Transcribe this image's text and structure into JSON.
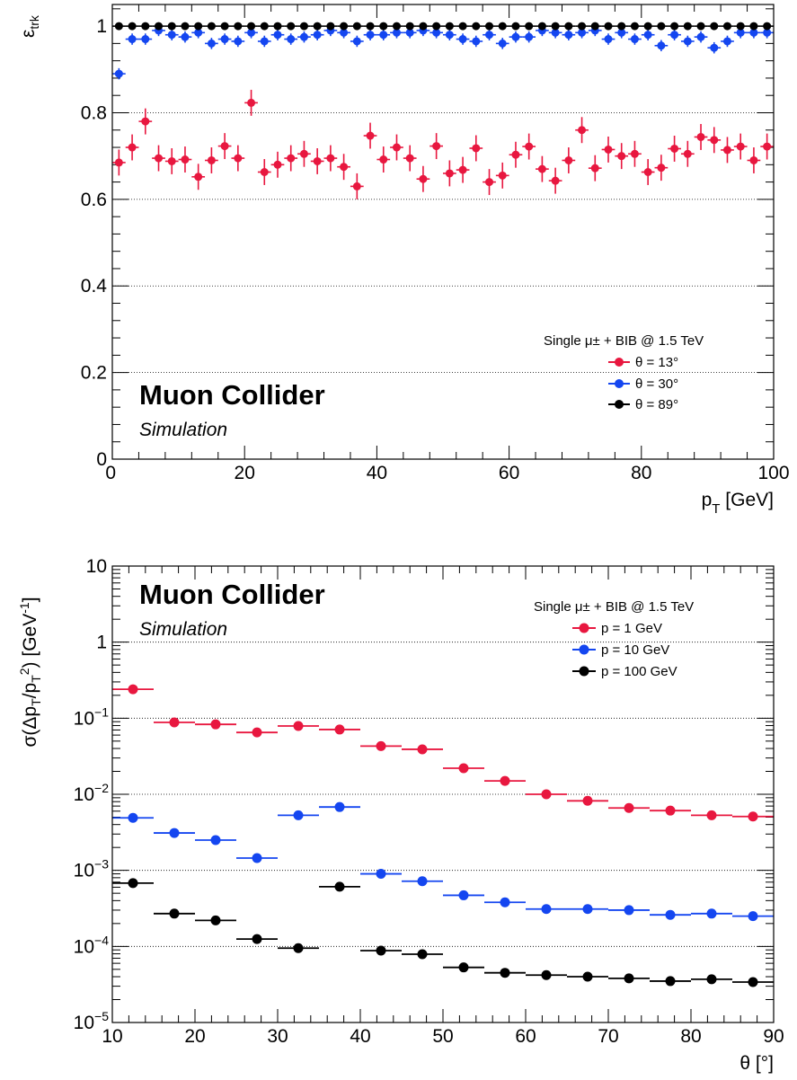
{
  "colors": {
    "red": "#e8173f",
    "blue": "#1446f0",
    "black": "#000000",
    "grid": "#000000"
  },
  "chart_data": [
    {
      "type": "scatter",
      "xlabel_main": "p",
      "xlabel_sub": "T",
      "xlabel_unit": " [GeV]",
      "ylabel_main": "ε",
      "ylabel_sub": "trk",
      "xlim": [
        0,
        100
      ],
      "ylim": [
        0,
        1.05
      ],
      "x_ticks": [
        "0",
        "20",
        "40",
        "60",
        "80",
        "100"
      ],
      "y_ticks": [
        "0",
        "0.2",
        "0.4",
        "0.6",
        "0.8",
        "1"
      ],
      "grid": "horizontal dotted",
      "legend_placement": "lower-right",
      "legend_header": "Single μ± + BIB @ 1.5 TeV",
      "brand": "Muon Collider",
      "brand_sub": "Simulation",
      "series": [
        {
          "name": "θ = 13°",
          "color": "red",
          "x": [
            1,
            3,
            5,
            7,
            9,
            11,
            13,
            15,
            17,
            19,
            21,
            23,
            25,
            27,
            29,
            31,
            33,
            35,
            37,
            39,
            41,
            43,
            45,
            47,
            49,
            51,
            53,
            55,
            57,
            59,
            61,
            63,
            65,
            67,
            69,
            71,
            73,
            75,
            77,
            79,
            81,
            83,
            85,
            87,
            89,
            91,
            93,
            95,
            97,
            99
          ],
          "y": [
            0.685,
            0.72,
            0.78,
            0.695,
            0.688,
            0.692,
            0.652,
            0.69,
            0.723,
            0.695,
            0.823,
            0.663,
            0.68,
            0.695,
            0.705,
            0.688,
            0.695,
            0.675,
            0.63,
            0.747,
            0.692,
            0.72,
            0.695,
            0.647,
            0.723,
            0.66,
            0.668,
            0.718,
            0.64,
            0.655,
            0.703,
            0.722,
            0.67,
            0.643,
            0.69,
            0.76,
            0.672,
            0.715,
            0.7,
            0.705,
            0.663,
            0.673,
            0.717,
            0.705,
            0.744,
            0.737,
            0.714,
            0.722,
            0.69,
            0.722
          ],
          "yerr": 0.03
        },
        {
          "name": "θ = 30°",
          "color": "blue",
          "x": [
            1,
            3,
            5,
            7,
            9,
            11,
            13,
            15,
            17,
            19,
            21,
            23,
            25,
            27,
            29,
            31,
            33,
            35,
            37,
            39,
            41,
            43,
            45,
            47,
            49,
            51,
            53,
            55,
            57,
            59,
            61,
            63,
            65,
            67,
            69,
            71,
            73,
            75,
            77,
            79,
            81,
            83,
            85,
            87,
            89,
            91,
            93,
            95,
            97,
            99
          ],
          "y": [
            0.89,
            0.97,
            0.97,
            0.99,
            0.98,
            0.975,
            0.985,
            0.96,
            0.97,
            0.965,
            0.985,
            0.965,
            0.98,
            0.97,
            0.975,
            0.98,
            0.99,
            0.985,
            0.965,
            0.98,
            0.98,
            0.985,
            0.985,
            0.99,
            0.985,
            0.98,
            0.97,
            0.965,
            0.98,
            0.96,
            0.975,
            0.975,
            0.99,
            0.985,
            0.98,
            0.985,
            0.99,
            0.97,
            0.985,
            0.97,
            0.98,
            0.955,
            0.98,
            0.965,
            0.975,
            0.95,
            0.965,
            0.985,
            0.985,
            0.985
          ],
          "yerr": 0.013
        },
        {
          "name": "θ = 89°",
          "color": "black",
          "x": [
            1,
            3,
            5,
            7,
            9,
            11,
            13,
            15,
            17,
            19,
            21,
            23,
            25,
            27,
            29,
            31,
            33,
            35,
            37,
            39,
            41,
            43,
            45,
            47,
            49,
            51,
            53,
            55,
            57,
            59,
            61,
            63,
            65,
            67,
            69,
            71,
            73,
            75,
            77,
            79,
            81,
            83,
            85,
            87,
            89,
            91,
            93,
            95,
            97,
            99
          ],
          "y": [
            1,
            1,
            1,
            1,
            1,
            1,
            1,
            1,
            1,
            1,
            1,
            1,
            1,
            1,
            1,
            1,
            1,
            1,
            1,
            1,
            1,
            1,
            1,
            1,
            1,
            1,
            1,
            1,
            1,
            1,
            1,
            1,
            1,
            1,
            1,
            1,
            1,
            1,
            1,
            1,
            1,
            1,
            1,
            1,
            1,
            1,
            1,
            1,
            1,
            1
          ],
          "yerr": 0.006
        }
      ]
    },
    {
      "type": "scatter",
      "xlabel": "θ [°]",
      "ylabel_parts": [
        "σ(Δp",
        "T",
        "/p",
        "T",
        "2",
        ") [GeV",
        "-1",
        "]"
      ],
      "xlim": [
        10,
        90
      ],
      "ylim": [
        1e-05,
        10
      ],
      "log_y": true,
      "x_ticks": [
        "10",
        "20",
        "30",
        "40",
        "50",
        "60",
        "70",
        "80",
        "90"
      ],
      "y_ticks": [
        {
          "base": "10",
          "exp": ""
        },
        {
          "base": "1",
          "exp": ""
        },
        {
          "base": "10",
          "exp": "−1"
        },
        {
          "base": "10",
          "exp": "−2"
        },
        {
          "base": "10",
          "exp": "−3"
        },
        {
          "base": "10",
          "exp": "−4"
        },
        {
          "base": "10",
          "exp": "−5"
        }
      ],
      "grid": "horizontal dotted",
      "legend_placement": "top-right",
      "legend_header": "Single μ± + BIB @ 1.5 TeV",
      "brand": "Muon Collider",
      "brand_sub": "Simulation",
      "bin_width": 5,
      "series": [
        {
          "name": "p = 1 GeV",
          "color": "red",
          "x": [
            12.5,
            17.5,
            22.5,
            27.5,
            32.5,
            37.5,
            42.5,
            47.5,
            52.5,
            57.5,
            62.5,
            67.5,
            72.5,
            77.5,
            82.5,
            87.5
          ],
          "y": [
            0.24,
            0.088,
            0.083,
            0.065,
            0.079,
            0.071,
            0.043,
            0.039,
            0.022,
            0.015,
            0.01,
            0.0082,
            0.0066,
            0.0061,
            0.0053,
            0.0051
          ]
        },
        {
          "name": "p = 10 GeV",
          "color": "blue",
          "x": [
            12.5,
            17.5,
            22.5,
            27.5,
            32.5,
            37.5,
            42.5,
            47.5,
            52.5,
            57.5,
            62.5,
            67.5,
            72.5,
            77.5,
            82.5,
            87.5
          ],
          "y": [
            0.0049,
            0.0031,
            0.0025,
            0.00145,
            0.0053,
            0.0068,
            0.0009,
            0.00072,
            0.00047,
            0.00038,
            0.00031,
            0.00031,
            0.0003,
            0.00026,
            0.00027,
            0.00025
          ]
        },
        {
          "name": "p = 100 GeV",
          "color": "black",
          "x": [
            12.5,
            17.5,
            22.5,
            27.5,
            32.5,
            37.5,
            42.5,
            47.5,
            52.5,
            57.5,
            62.5,
            67.5,
            72.5,
            77.5,
            82.5,
            87.5
          ],
          "y": [
            0.00068,
            0.00027,
            0.00022,
            0.000125,
            9.5e-05,
            0.00061,
            8.8e-05,
            7.9e-05,
            5.3e-05,
            4.5e-05,
            4.2e-05,
            4e-05,
            3.8e-05,
            3.5e-05,
            3.7e-05,
            3.4e-05
          ]
        }
      ]
    }
  ]
}
